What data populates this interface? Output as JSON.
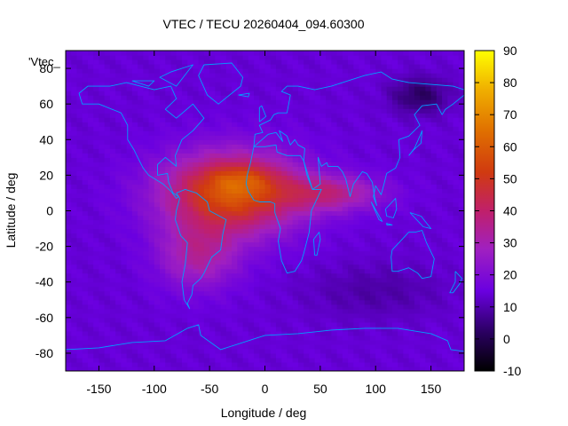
{
  "chart_data": {
    "type": "heatmap",
    "title": "VTEC / TECU 20260404_094.60300",
    "xlabel": "Longitude / deg",
    "ylabel": "Latitude / deg",
    "key_title": "'Vtec_",
    "xlim": [
      -180,
      180
    ],
    "ylim": [
      -90,
      90
    ],
    "xticks": [
      {
        "value": -150,
        "label": "-150"
      },
      {
        "value": -100,
        "label": "-100"
      },
      {
        "value": -50,
        "label": "-50"
      },
      {
        "value": 0,
        "label": "0"
      },
      {
        "value": 50,
        "label": "50"
      },
      {
        "value": 100,
        "label": "100"
      },
      {
        "value": 150,
        "label": "150"
      }
    ],
    "yticks": [
      {
        "value": 80,
        "label": "80"
      },
      {
        "value": 60,
        "label": "60"
      },
      {
        "value": 40,
        "label": "40"
      },
      {
        "value": 20,
        "label": "20"
      },
      {
        "value": 0,
        "label": "0"
      },
      {
        "value": -20,
        "label": "-20"
      },
      {
        "value": -40,
        "label": "-40"
      },
      {
        "value": -60,
        "label": "-60"
      },
      {
        "value": -80,
        "label": "-80"
      }
    ],
    "colorbar": {
      "min": -10,
      "max": 90,
      "ticks": [
        {
          "value": 90,
          "label": "90"
        },
        {
          "value": 80,
          "label": "80"
        },
        {
          "value": 70,
          "label": "70"
        },
        {
          "value": 60,
          "label": "60"
        },
        {
          "value": 50,
          "label": "50"
        },
        {
          "value": 40,
          "label": "40"
        },
        {
          "value": 30,
          "label": "30"
        },
        {
          "value": 20,
          "label": "20"
        },
        {
          "value": 10,
          "label": "10"
        },
        {
          "value": 0,
          "label": "0"
        },
        {
          "value": -10,
          "label": "-10"
        }
      ]
    },
    "grid": {
      "lon_step": 5,
      "lat_step": 2.5,
      "background_tecu": 14,
      "components": [
        {
          "lon": -30,
          "lat": 10,
          "slon": 60,
          "slat": 22,
          "amp": 44
        },
        {
          "lon": -60,
          "lat": -25,
          "slon": 35,
          "slat": 18,
          "amp": 18
        },
        {
          "lon": 60,
          "lat": 10,
          "slon": 45,
          "slat": 10,
          "amp": 20
        },
        {
          "lon": -20,
          "lat": 18,
          "slon": 30,
          "slat": 8,
          "amp": 10
        },
        {
          "lon": 140,
          "lat": 65,
          "slon": 25,
          "slat": 10,
          "amp": -12
        },
        {
          "lon": 100,
          "lat": -45,
          "slon": 60,
          "slat": 15,
          "amp": -5
        }
      ]
    },
    "coastlines": [
      [
        [
          -168,
          66
        ],
        [
          -160,
          70
        ],
        [
          -140,
          70
        ],
        [
          -125,
          72
        ],
        [
          -100,
          68
        ],
        [
          -85,
          70
        ],
        [
          -80,
          63
        ],
        [
          -90,
          57
        ],
        [
          -80,
          52
        ],
        [
          -65,
          60
        ],
        [
          -55,
          52
        ],
        [
          -65,
          45
        ],
        [
          -75,
          40
        ],
        [
          -81,
          31
        ],
        [
          -80,
          25
        ],
        [
          -90,
          30
        ],
        [
          -97,
          26
        ],
        [
          -97,
          20
        ],
        [
          -88,
          21
        ],
        [
          -87,
          16
        ],
        [
          -83,
          10
        ],
        [
          -78,
          8
        ],
        [
          -80,
          7
        ],
        [
          -85,
          11
        ],
        [
          -92,
          15
        ],
        [
          -105,
          20
        ],
        [
          -110,
          24
        ],
        [
          -115,
          30
        ],
        [
          -118,
          34
        ],
        [
          -124,
          40
        ],
        [
          -124,
          48
        ],
        [
          -130,
          55
        ],
        [
          -150,
          60
        ],
        [
          -165,
          60
        ],
        [
          -168,
          66
        ]
      ],
      [
        [
          -55,
          82
        ],
        [
          -30,
          83
        ],
        [
          -20,
          75
        ],
        [
          -22,
          70
        ],
        [
          -42,
          60
        ],
        [
          -52,
          65
        ],
        [
          -60,
          76
        ],
        [
          -55,
          82
        ]
      ],
      [
        [
          -80,
          10
        ],
        [
          -72,
          12
        ],
        [
          -62,
          10
        ],
        [
          -52,
          5
        ],
        [
          -50,
          0
        ],
        [
          -35,
          -5
        ],
        [
          -38,
          -13
        ],
        [
          -40,
          -22
        ],
        [
          -48,
          -26
        ],
        [
          -55,
          -35
        ],
        [
          -58,
          -38
        ],
        [
          -65,
          -42
        ],
        [
          -66,
          -47
        ],
        [
          -70,
          -52
        ],
        [
          -68,
          -55
        ],
        [
          -73,
          -50
        ],
        [
          -75,
          -40
        ],
        [
          -72,
          -30
        ],
        [
          -70,
          -18
        ],
        [
          -76,
          -14
        ],
        [
          -81,
          -5
        ],
        [
          -80,
          0
        ],
        [
          -77,
          7
        ],
        [
          -80,
          10
        ]
      ],
      [
        [
          -10,
          36
        ],
        [
          0,
          36
        ],
        [
          10,
          37
        ],
        [
          11,
          33
        ],
        [
          20,
          31
        ],
        [
          32,
          31
        ],
        [
          35,
          28
        ],
        [
          43,
          12
        ],
        [
          51,
          12
        ],
        [
          42,
          0
        ],
        [
          40,
          -12
        ],
        [
          35,
          -24
        ],
        [
          33,
          -28
        ],
        [
          27,
          -34
        ],
        [
          20,
          -35
        ],
        [
          15,
          -28
        ],
        [
          12,
          -17
        ],
        [
          14,
          -10
        ],
        [
          9,
          -1
        ],
        [
          9,
          4
        ],
        [
          5,
          5
        ],
        [
          -5,
          5
        ],
        [
          -10,
          6
        ],
        [
          -15,
          11
        ],
        [
          -17,
          15
        ],
        [
          -16,
          20
        ],
        [
          -13,
          27
        ],
        [
          -10,
          36
        ]
      ],
      [
        [
          -10,
          36
        ],
        [
          -9,
          43
        ],
        [
          -2,
          44
        ],
        [
          -5,
          48
        ],
        [
          5,
          51
        ],
        [
          8,
          54
        ],
        [
          12,
          55
        ],
        [
          20,
          55
        ],
        [
          23,
          65
        ],
        [
          15,
          67
        ],
        [
          20,
          70
        ],
        [
          30,
          70
        ],
        [
          45,
          68
        ],
        [
          60,
          70
        ],
        [
          75,
          73
        ],
        [
          90,
          76
        ],
        [
          105,
          78
        ],
        [
          115,
          74
        ],
        [
          130,
          72
        ],
        [
          150,
          71
        ],
        [
          170,
          70
        ],
        [
          180,
          68
        ]
      ],
      [
        [
          180,
          65
        ],
        [
          170,
          60
        ],
        [
          163,
          57
        ],
        [
          160,
          54
        ],
        [
          155,
          60
        ],
        [
          142,
          59
        ],
        [
          135,
          54
        ],
        [
          140,
          48
        ],
        [
          130,
          42
        ],
        [
          121,
          40
        ],
        [
          122,
          30
        ],
        [
          118,
          24
        ],
        [
          110,
          21
        ],
        [
          108,
          16
        ],
        [
          105,
          9
        ],
        [
          100,
          14
        ],
        [
          98,
          8
        ],
        [
          101,
          3
        ],
        [
          99,
          8
        ],
        [
          97,
          16
        ],
        [
          92,
          21
        ],
        [
          88,
          22
        ],
        [
          80,
          15
        ],
        [
          77,
          8
        ],
        [
          73,
          18
        ],
        [
          70,
          22
        ],
        [
          66,
          25
        ],
        [
          57,
          25
        ],
        [
          56,
          27
        ],
        [
          51,
          25
        ],
        [
          48,
          30
        ],
        [
          50,
          15
        ],
        [
          43,
          12
        ],
        [
          38,
          20
        ],
        [
          35,
          28
        ],
        [
          36,
          35
        ],
        [
          30,
          37
        ],
        [
          27,
          40
        ],
        [
          23,
          37
        ],
        [
          20,
          42
        ],
        [
          13,
          45
        ],
        [
          16,
          39
        ],
        [
          10,
          44
        ],
        [
          3,
          43
        ],
        [
          -10,
          36
        ]
      ],
      [
        [
          115,
          -22
        ],
        [
          114,
          -26
        ],
        [
          115,
          -34
        ],
        [
          120,
          -34
        ],
        [
          130,
          -32
        ],
        [
          138,
          -35
        ],
        [
          142,
          -38
        ],
        [
          150,
          -37
        ],
        [
          153,
          -27
        ],
        [
          146,
          -18
        ],
        [
          142,
          -11
        ],
        [
          136,
          -12
        ],
        [
          130,
          -12
        ],
        [
          124,
          -16
        ],
        [
          115,
          -22
        ]
      ],
      [
        [
          -180,
          -78
        ],
        [
          -150,
          -77
        ],
        [
          -120,
          -74
        ],
        [
          -90,
          -73
        ],
        [
          -70,
          -66
        ],
        [
          -60,
          -64
        ],
        [
          -58,
          -70
        ],
        [
          -40,
          -78
        ],
        [
          -20,
          -74
        ],
        [
          0,
          -70
        ],
        [
          30,
          -69
        ],
        [
          60,
          -67
        ],
        [
          90,
          -66
        ],
        [
          120,
          -66
        ],
        [
          150,
          -69
        ],
        [
          165,
          -73
        ],
        [
          168,
          -78
        ],
        [
          180,
          -79
        ]
      ],
      [
        [
          -5,
          50
        ],
        [
          -5,
          58
        ],
        [
          -3,
          59
        ],
        [
          1,
          53
        ],
        [
          -5,
          50
        ]
      ],
      [
        [
          130,
          31
        ],
        [
          134,
          34
        ],
        [
          141,
          38
        ],
        [
          142,
          45
        ],
        [
          140,
          42
        ],
        [
          135,
          35
        ],
        [
          130,
          31
        ]
      ],
      [
        [
          45,
          -25
        ],
        [
          44,
          -16
        ],
        [
          49,
          -12
        ],
        [
          50,
          -16
        ],
        [
          47,
          -25
        ],
        [
          45,
          -25
        ]
      ],
      [
        [
          172,
          -34
        ],
        [
          178,
          -38
        ],
        [
          176,
          -41
        ],
        [
          170,
          -46
        ],
        [
          167,
          -46
        ],
        [
          172,
          -40
        ],
        [
          172,
          -34
        ]
      ],
      [
        [
          96,
          5
        ],
        [
          106,
          -6
        ],
        [
          103,
          -5
        ],
        [
          96,
          5
        ]
      ],
      [
        [
          110,
          -8
        ],
        [
          115,
          -8
        ],
        [
          110,
          -7
        ],
        [
          110,
          -8
        ]
      ],
      [
        [
          109,
          1
        ],
        [
          118,
          7
        ],
        [
          119,
          1
        ],
        [
          116,
          -4
        ],
        [
          110,
          -3
        ],
        [
          109,
          1
        ]
      ],
      [
        [
          131,
          -1
        ],
        [
          141,
          -3
        ],
        [
          150,
          -10
        ],
        [
          143,
          -9
        ],
        [
          131,
          -1
        ]
      ],
      [
        [
          -24,
          65
        ],
        [
          -14,
          66
        ],
        [
          -15,
          64
        ],
        [
          -24,
          65
        ]
      ],
      [
        [
          -85,
          78
        ],
        [
          -65,
          82
        ],
        [
          -80,
          70
        ],
        [
          -95,
          75
        ],
        [
          -85,
          78
        ]
      ],
      [
        [
          -120,
          73
        ],
        [
          -100,
          73
        ],
        [
          -105,
          70
        ],
        [
          -120,
          73
        ]
      ]
    ]
  }
}
